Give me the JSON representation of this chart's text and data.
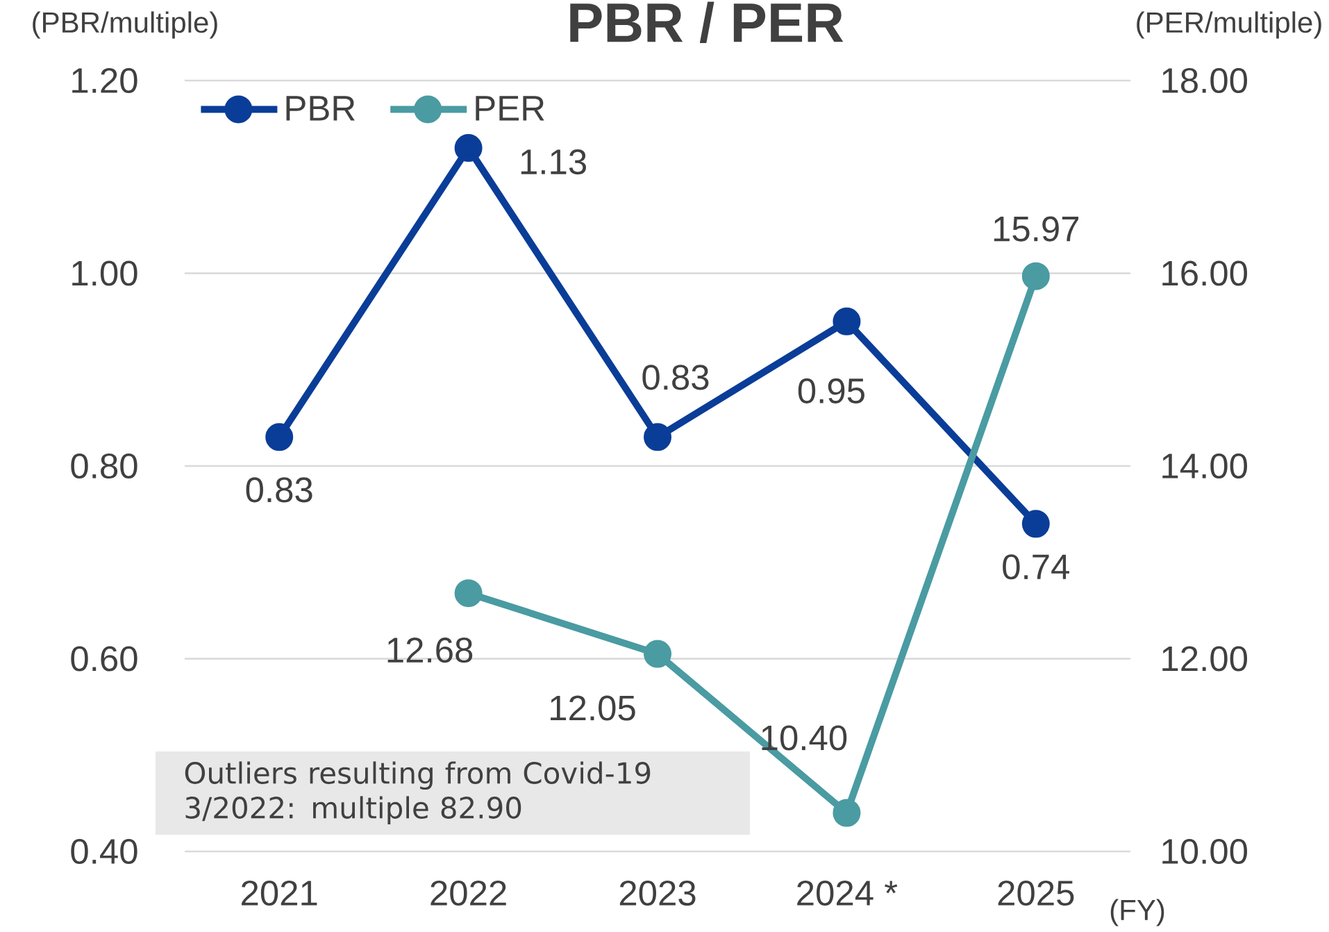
{
  "chart_data": {
    "type": "line",
    "title": "PBR / PER",
    "ylabel": "(PBR/multiple)",
    "y2label": "(PER/multiple)",
    "xlabel": "(FY)",
    "categories": [
      "2021",
      "2022",
      "2023",
      "2024 *",
      "2025"
    ],
    "series": [
      {
        "name": "PBR",
        "color": "#0a3d98",
        "values": [
          0.83,
          1.13,
          0.83,
          0.95,
          0.74
        ],
        "value_labels": [
          "0.83",
          "1.13",
          "0.83",
          "0.95",
          "0.74"
        ]
      },
      {
        "name": "PER",
        "color": "#4a9ba2",
        "axis": "y2",
        "values": [
          null,
          12.68,
          12.05,
          10.4,
          15.97
        ],
        "value_labels": [
          null,
          "12.68",
          "12.05",
          "10.40",
          "15.97"
        ]
      }
    ],
    "ylim": [
      0.4,
      1.2
    ],
    "yticks": [
      {
        "value": 0.4,
        "label": "0.40"
      },
      {
        "value": 0.6,
        "label": "0.60"
      },
      {
        "value": 0.8,
        "label": "0.80"
      },
      {
        "value": 1.0,
        "label": "1.00"
      },
      {
        "value": 1.2,
        "label": "1.20"
      }
    ],
    "y2lim": [
      10,
      18
    ],
    "y2ticks": [
      {
        "value": 10,
        "label": "10.00"
      },
      {
        "value": 12,
        "label": "12.00"
      },
      {
        "value": 14,
        "label": "14.00"
      },
      {
        "value": 16,
        "label": "16.00"
      },
      {
        "value": 18,
        "label": "18.00"
      }
    ],
    "grid": "y",
    "legend": "top left",
    "marker": "circle",
    "line_style": "solid",
    "annotations": [
      "Outliers resulting from Covid-19",
      "3/2022: multiple 82.90"
    ]
  }
}
